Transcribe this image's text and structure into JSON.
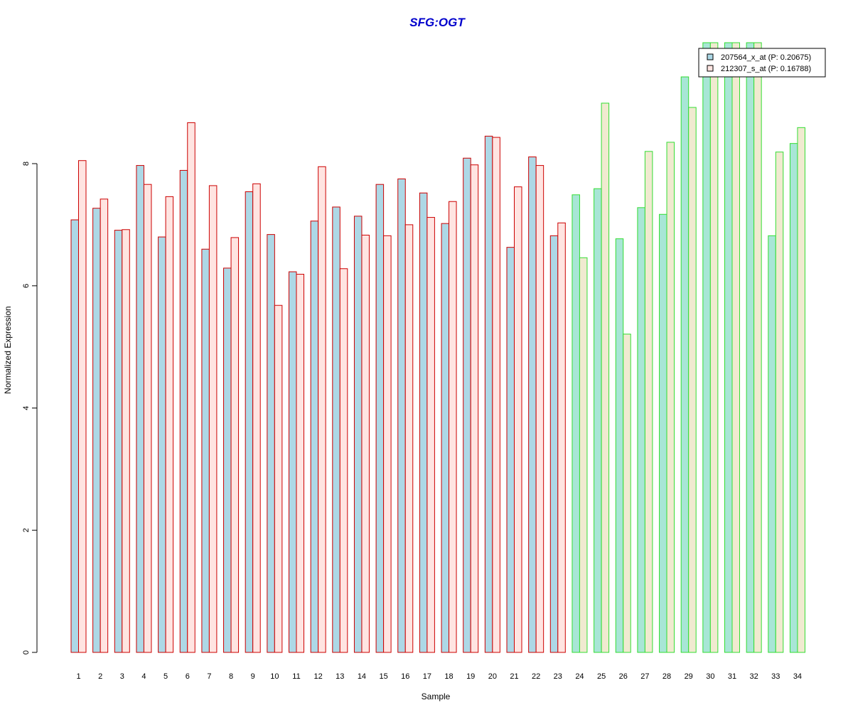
{
  "chart_data": {
    "type": "bar",
    "title": "SFG:OGT",
    "xlabel": "Sample",
    "ylabel": "Normalized Expression",
    "ylim": [
      0,
      10
    ],
    "y_ticks": [
      0,
      2,
      4,
      6,
      8
    ],
    "categories": [
      "1",
      "2",
      "3",
      "4",
      "5",
      "6",
      "7",
      "8",
      "9",
      "10",
      "11",
      "12",
      "13",
      "14",
      "15",
      "16",
      "17",
      "18",
      "19",
      "20",
      "21",
      "22",
      "23",
      "24",
      "25",
      "26",
      "27",
      "28",
      "29",
      "30",
      "31",
      "32",
      "33",
      "34"
    ],
    "series": [
      {
        "name": "207564_x_at (P: 0.20675)",
        "values": [
          7.08,
          7.27,
          6.91,
          7.97,
          6.8,
          7.89,
          6.6,
          6.29,
          7.54,
          6.84,
          6.23,
          7.06,
          7.29,
          7.14,
          7.66,
          7.75,
          7.52,
          7.02,
          8.09,
          8.45,
          6.63,
          8.11,
          6.82,
          7.49,
          7.59,
          6.77,
          7.28,
          7.17,
          9.42,
          10.3,
          10.3,
          10.3,
          6.82,
          8.33
        ]
      },
      {
        "name": "212307_s_at (P: 0.16788)",
        "values": [
          8.05,
          7.42,
          6.92,
          7.66,
          7.46,
          8.67,
          7.64,
          6.79,
          7.67,
          5.68,
          6.19,
          7.95,
          6.28,
          6.83,
          6.82,
          7.0,
          7.12,
          7.38,
          7.98,
          8.43,
          7.62,
          7.97,
          7.03,
          6.46,
          8.99,
          5.21,
          8.2,
          8.35,
          8.92,
          10.3,
          10.3,
          10.3,
          8.19,
          8.59
        ]
      }
    ],
    "group_split_after_sample": 23,
    "colors": {
      "title": "#0000cc",
      "group1_fill_series1": "#add8e6",
      "group1_fill_series2": "#ffe4e1",
      "group1_border": "#cc0000",
      "group2_fill_series1": "#a8e6d6",
      "group2_fill_series2": "#f0ead0",
      "group2_border": "#33dd33"
    },
    "legend": {
      "position": "top-right",
      "items": [
        "207564_x_at (P: 0.20675)",
        "212307_s_at (P: 0.16788)"
      ]
    },
    "grid": false
  }
}
